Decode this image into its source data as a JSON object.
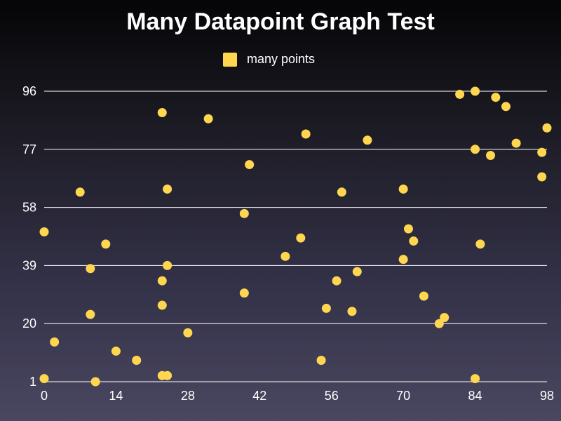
{
  "chart_data": {
    "type": "scatter",
    "title": "Many Datapoint Graph Test",
    "xlabel": "",
    "ylabel": "",
    "xlim": [
      0,
      98
    ],
    "ylim": [
      1,
      96
    ],
    "x_ticks": [
      0,
      14,
      28,
      42,
      56,
      70,
      84,
      98
    ],
    "y_ticks": [
      1,
      20,
      39,
      58,
      77,
      96
    ],
    "grid": "horizontal",
    "legend_position": "top-center",
    "series": [
      {
        "name": "many points",
        "color": "#FFD64F",
        "points": [
          [
            0,
            2
          ],
          [
            0,
            50
          ],
          [
            2,
            14
          ],
          [
            7,
            63
          ],
          [
            9,
            23
          ],
          [
            9,
            38
          ],
          [
            10,
            1
          ],
          [
            12,
            46
          ],
          [
            14,
            11
          ],
          [
            18,
            8
          ],
          [
            23,
            3
          ],
          [
            23,
            26
          ],
          [
            23,
            34
          ],
          [
            23,
            89
          ],
          [
            24,
            3
          ],
          [
            24,
            39
          ],
          [
            24,
            64
          ],
          [
            28,
            17
          ],
          [
            32,
            87
          ],
          [
            39,
            30
          ],
          [
            39,
            56
          ],
          [
            40,
            72
          ],
          [
            47,
            42
          ],
          [
            50,
            48
          ],
          [
            51,
            82
          ],
          [
            54,
            8
          ],
          [
            55,
            25
          ],
          [
            57,
            34
          ],
          [
            58,
            63
          ],
          [
            60,
            24
          ],
          [
            61,
            37
          ],
          [
            63,
            80
          ],
          [
            70,
            41
          ],
          [
            70,
            64
          ],
          [
            71,
            51
          ],
          [
            72,
            47
          ],
          [
            74,
            29
          ],
          [
            77,
            20
          ],
          [
            78,
            22
          ],
          [
            81,
            95
          ],
          [
            84,
            2
          ],
          [
            84,
            77
          ],
          [
            84,
            96
          ],
          [
            85,
            46
          ],
          [
            87,
            75
          ],
          [
            88,
            94
          ],
          [
            90,
            91
          ],
          [
            92,
            79
          ],
          [
            97,
            68
          ],
          [
            97,
            76
          ],
          [
            98,
            84
          ]
        ]
      }
    ]
  }
}
